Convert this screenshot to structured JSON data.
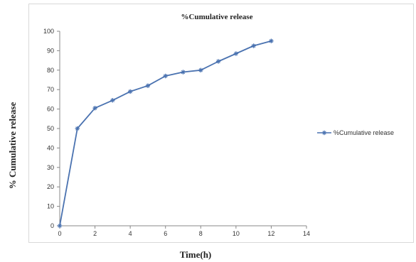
{
  "chart_data": {
    "type": "line",
    "title": "%Cumulative release",
    "xlabel": "Time(h)",
    "ylabel": "% Cumulative release",
    "xlim": [
      0,
      14
    ],
    "ylim": [
      0,
      100
    ],
    "x_ticks": [
      "0",
      "2",
      "4",
      "6",
      "8",
      "10",
      "12",
      "14"
    ],
    "y_ticks": [
      "0",
      "10",
      "20",
      "30",
      "40",
      "50",
      "60",
      "70",
      "80",
      "90",
      "100"
    ],
    "grid": false,
    "legend_position": "right",
    "series": [
      {
        "name": "%Cumulative release",
        "color": "#4a72b0",
        "x": [
          0,
          1,
          2,
          3,
          4,
          5,
          6,
          7,
          8,
          9,
          10,
          11,
          12
        ],
        "y": [
          0,
          50,
          60.5,
          64.5,
          69,
          72,
          77,
          79,
          80,
          84.5,
          88.5,
          92.5,
          95
        ]
      }
    ]
  }
}
